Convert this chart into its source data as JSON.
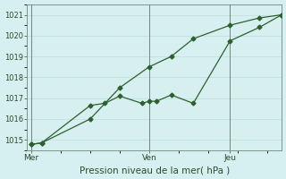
{
  "xlabel": "Pression niveau de la mer( hPa )",
  "background_color": "#d6eff0",
  "plot_bg_color": "#d6eff0",
  "grid_color_major": "#c8dfe0",
  "grid_color_minor": "#e0ecec",
  "line_color": "#2d6030",
  "ylim": [
    1014.5,
    1021.5
  ],
  "yticks": [
    1015,
    1016,
    1017,
    1018,
    1019,
    1020,
    1021
  ],
  "xtick_labels": [
    "Mer",
    "Ven",
    "Jeu"
  ],
  "xtick_positions": [
    0,
    8,
    13.5
  ],
  "vlines_x": [
    0,
    8,
    13.5
  ],
  "xlim": [
    -0.3,
    17
  ],
  "line1_x": [
    0,
    0.7,
    4,
    5,
    6,
    7.5,
    8,
    8.5,
    9.5,
    11,
    13.5,
    15.5,
    17
  ],
  "line1_y": [
    1014.78,
    1014.85,
    1016.65,
    1016.75,
    1017.1,
    1016.75,
    1016.85,
    1016.85,
    1017.15,
    1016.75,
    1019.75,
    1020.4,
    1021.0
  ],
  "line2_x": [
    0,
    0.7,
    4,
    6,
    8,
    9.5,
    11,
    13.5,
    15.5,
    17
  ],
  "line2_y": [
    1014.78,
    1014.85,
    1016.0,
    1017.5,
    1018.5,
    1019.0,
    1019.85,
    1020.5,
    1020.85,
    1021.0
  ],
  "figsize": [
    3.2,
    2.0
  ],
  "dpi": 100
}
